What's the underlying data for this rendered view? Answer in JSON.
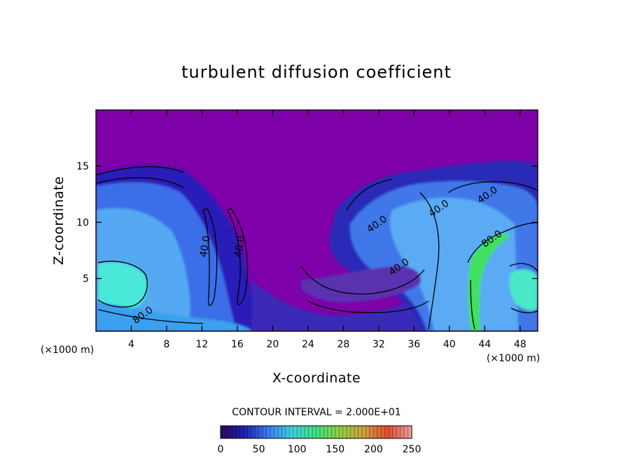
{
  "chart_data": {
    "type": "heatmap",
    "title": "turbulent diffusion coefficient",
    "xlabel": "X-coordinate",
    "ylabel": "Z-coordinate",
    "x_unit": "(×1000 m)",
    "y_unit": "(×1000 m)",
    "xlim": [
      0,
      50
    ],
    "ylim": [
      0.3,
      20
    ],
    "x_ticks": [
      4,
      8,
      12,
      16,
      20,
      24,
      28,
      32,
      36,
      40,
      44,
      48
    ],
    "y_ticks": [
      5,
      10,
      15
    ],
    "contour_interval_text": "CONTOUR INTERVAL = 2.000E+01",
    "colorbar": {
      "min": 0,
      "max": 250,
      "ticks": [
        0,
        50,
        100,
        150,
        200,
        250
      ],
      "colors": [
        "#2a0a5e",
        "#2020b0",
        "#3a80f0",
        "#40d0e0",
        "#40e080",
        "#90d040",
        "#d0a040",
        "#e05030",
        "#f0a0a0"
      ]
    },
    "background_color": "#7d00a8",
    "contour_labels": [
      {
        "text": "40.0",
        "x": 12.7,
        "z": 7.8
      },
      {
        "text": "40.0",
        "x": 16.6,
        "z": 7.8
      },
      {
        "text": "40.0",
        "x": 32.0,
        "z": 9.6
      },
      {
        "text": "40.0",
        "x": 39.0,
        "z": 11.0
      },
      {
        "text": "40.0",
        "x": 44.5,
        "z": 12.2
      },
      {
        "text": "40.0",
        "x": 34.5,
        "z": 5.8
      },
      {
        "text": "80.0",
        "x": 45.0,
        "z": 8.3
      },
      {
        "text": "80.0",
        "x": 5.5,
        "z": 1.5
      }
    ]
  }
}
